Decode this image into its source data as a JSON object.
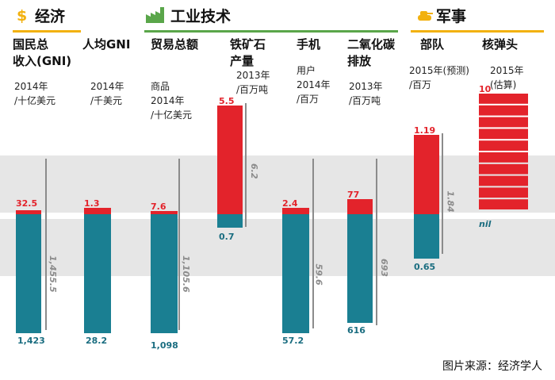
{
  "sections": [
    {
      "title": "经济",
      "icon": "dollar-icon",
      "color": "#f2b10f"
    },
    {
      "title": "工业技术",
      "icon": "factory-icon",
      "color": "#5aa64a"
    },
    {
      "title": "军事",
      "icon": "tank-icon",
      "color": "#f2b10f"
    }
  ],
  "columns": [
    {
      "title": "国民总\n收入(GNI)",
      "subtitle": "2014年\n/十亿美元"
    },
    {
      "title": "人均GNI",
      "subtitle": "2014年\n/千美元"
    },
    {
      "title": "贸易总额",
      "subtitle": "商品\n2014年\n/十亿美元"
    },
    {
      "title": "铁矿石\n产量",
      "subtitle": "2013年\n/百万吨"
    },
    {
      "title": "手机",
      "subtitle": "用户\n2014年\n/百万"
    },
    {
      "title": "二氧化碳\n排放",
      "subtitle": "2013年\n/百万吨"
    },
    {
      "title": "部队",
      "subtitle": "2015年(预测)\n/百万"
    },
    {
      "title": "核弹头",
      "subtitle": "2015年\n(估算)"
    }
  ],
  "chart_data": {
    "type": "bar",
    "title": "",
    "series": [
      {
        "name": "red",
        "color": "#e3232b",
        "labels": [
          "32.5",
          "1.3",
          "7.6",
          "5.5",
          "2.4",
          "77",
          "1.19",
          "10"
        ]
      },
      {
        "name": "teal",
        "color": "#1a7f92",
        "labels": [
          "1,423",
          "28.2",
          "1,098",
          "0.7",
          "57.2",
          "616",
          "0.65",
          "nil"
        ]
      },
      {
        "name": "grey-reference",
        "color": "#8b8b8b",
        "labels": [
          "1,455.5",
          "",
          "1,105.6",
          "6.2",
          "59.6",
          "693",
          "1.84",
          ""
        ]
      }
    ],
    "warhead_segments": 10
  },
  "source": "图片来源：经济学人"
}
